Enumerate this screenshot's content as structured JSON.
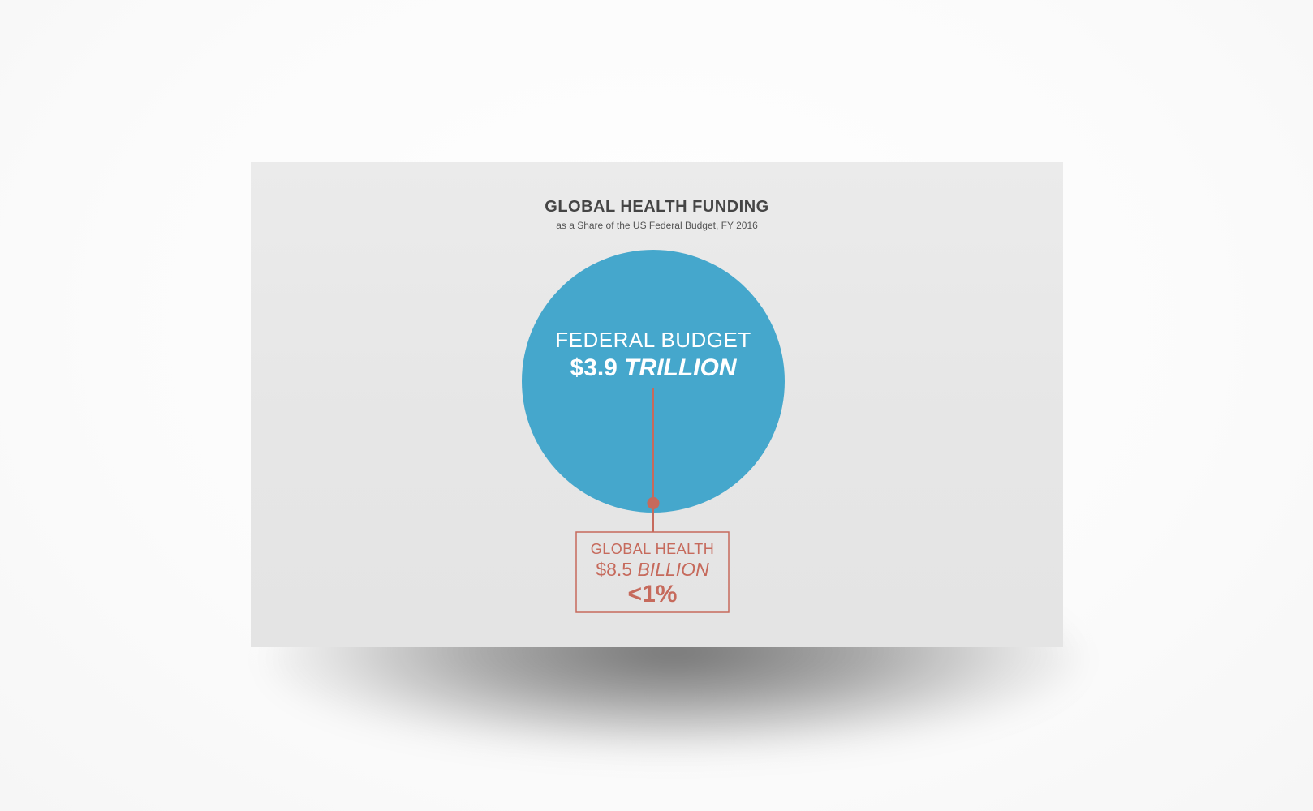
{
  "title": "GLOBAL HEALTH FUNDING",
  "subtitle": "as a Share of the US Federal Budget, FY 2016",
  "colors": {
    "big_circle": "#45a7cc",
    "callout": "#c66a5c",
    "card": "#e8e8e8",
    "title": "#454545"
  },
  "chart_data": {
    "type": "bubble",
    "title": "GLOBAL HEALTH FUNDING",
    "subtitle": "as a Share of the US Federal Budget, FY 2016",
    "items": [
      {
        "label": "FEDERAL BUDGET",
        "amount_text": "$3.9",
        "unit_text": "TRILLION",
        "value": 3900000000000
      },
      {
        "label": "GLOBAL HEALTH",
        "amount_text": "$8.5",
        "unit_text": "BILLION",
        "value": 8500000000,
        "share_text": "<1%"
      }
    ]
  }
}
